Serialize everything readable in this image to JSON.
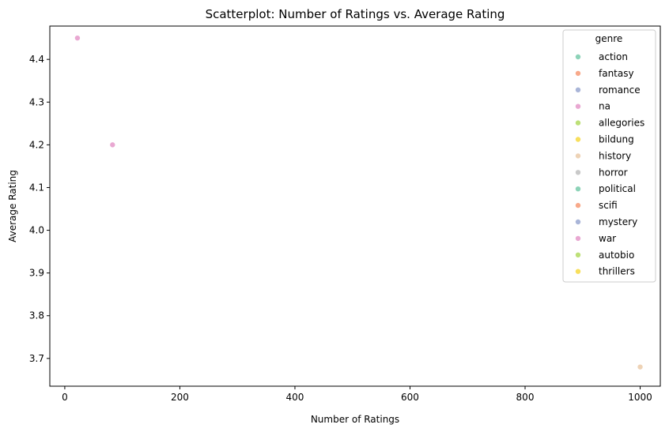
{
  "chart_data": {
    "type": "scatter",
    "title": "Scatterplot: Number of Ratings vs. Average Rating",
    "xlabel": "Number of Ratings",
    "ylabel": "Average Rating",
    "xlim": [
      -26,
      1035
    ],
    "ylim": [
      3.635,
      4.478
    ],
    "xticks": [
      0,
      200,
      400,
      600,
      800,
      1000
    ],
    "yticks": [
      3.7,
      3.8,
      3.9,
      4.0,
      4.1,
      4.2,
      4.3,
      4.4
    ],
    "ytick_labels": [
      "3.7",
      "3.8",
      "3.9",
      "4.0",
      "4.1",
      "4.2",
      "4.3",
      "4.4"
    ],
    "grid": false,
    "legend": {
      "title": "genre",
      "placement": "top-right",
      "entries": [
        {
          "name": "action",
          "color": "#8dd3b8"
        },
        {
          "name": "fantasy",
          "color": "#f8a98a"
        },
        {
          "name": "romance",
          "color": "#a9b5d8"
        },
        {
          "name": "na",
          "color": "#e9a8d2"
        },
        {
          "name": "allegories",
          "color": "#bde078"
        },
        {
          "name": "bildung",
          "color": "#f8df5c"
        },
        {
          "name": "history",
          "color": "#eed3b6"
        },
        {
          "name": "horror",
          "color": "#c9c9c9"
        },
        {
          "name": "political",
          "color": "#8dd3b8"
        },
        {
          "name": "scifi",
          "color": "#f8a98a"
        },
        {
          "name": "mystery",
          "color": "#a9b5d8"
        },
        {
          "name": "war",
          "color": "#e9a8d2"
        },
        {
          "name": "autobio",
          "color": "#bde078"
        },
        {
          "name": "thrillers",
          "color": "#f8df5c"
        }
      ]
    },
    "points": [
      {
        "x": 22,
        "y": 4.45,
        "genre": "na"
      },
      {
        "x": 83,
        "y": 4.2,
        "genre": "na"
      },
      {
        "x": 1000,
        "y": 3.68,
        "genre": "history"
      }
    ]
  }
}
